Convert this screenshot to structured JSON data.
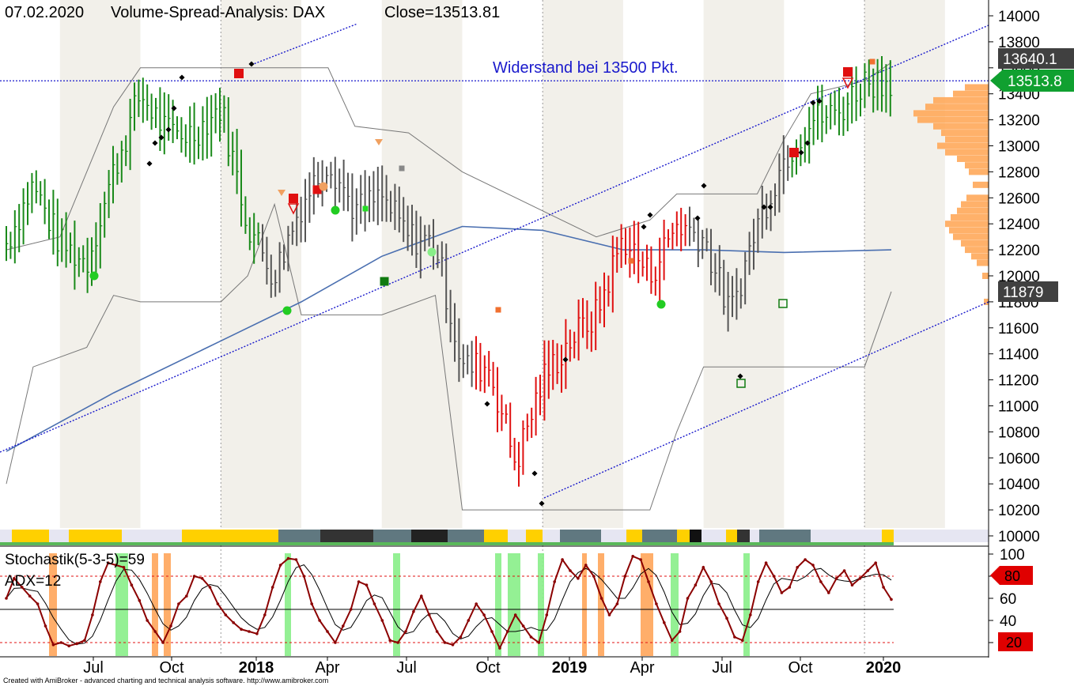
{
  "header": {
    "date": "07.02.2020",
    "title": "Volume-Spread-Analysis: DAX",
    "close_label": "Close=13513.81"
  },
  "annotation": {
    "resistance_text": "Widerstand bei 13500 Pkt."
  },
  "footer": {
    "credit": "Created with AmiBroker - advanced charting and technical analysis software. http://www.amibroker.com"
  },
  "price_badges": {
    "upper_band": "13640.1",
    "close": "13513.8",
    "lower_band": "11879"
  },
  "indicator": {
    "stoch_label": "Stochastik(5-3-5)=59",
    "adx_label": "ADX=12",
    "level_high": "80",
    "level_low": "20"
  },
  "colors": {
    "up_bar": "#1a8a1a",
    "down_bar": "#e01010",
    "neutral_bar": "#555555",
    "trend_line": "#1a1acc",
    "moving_average": "#4a6fb0",
    "volume_profile": "#ffa85a",
    "stoch_line": "#8b0000",
    "close_badge": "#10a030",
    "band_badge": "#404040",
    "level_badge": "#e00000"
  },
  "chart_data": [
    {
      "type": "bar",
      "subtype": "ohlc",
      "title": "Volume-Spread-Analysis: DAX",
      "date_labels": [
        "Jul",
        "Oct",
        "2018",
        "Apr",
        "Jul",
        "Oct",
        "2019",
        "Apr",
        "Jul",
        "Oct",
        "2020"
      ],
      "bold_labels": [
        "2018",
        "2019",
        "2020"
      ],
      "y_ticks": [
        10000,
        10200,
        10400,
        10600,
        10800,
        11000,
        11200,
        11400,
        11600,
        11800,
        12000,
        12200,
        12400,
        12600,
        12800,
        13000,
        13200,
        13400,
        13600,
        13800,
        14000
      ],
      "ylim": [
        9900,
        14100
      ],
      "close": 13513.81,
      "resistance": 13500,
      "band_upper_last": 13640.1,
      "band_lower_last": 11879,
      "series": [
        {
          "name": "weekly_close_approx",
          "points": [
            [
              "2017-05",
              12250
            ],
            [
              "2017-06",
              12700
            ],
            [
              "2017-07",
              12250
            ],
            [
              "2017-08",
              12100
            ],
            [
              "2017-09",
              12800
            ],
            [
              "2017-10",
              13400
            ],
            [
              "2017-11",
              13100
            ],
            [
              "2017-12",
              13100
            ],
            [
              "2018-01",
              13300
            ],
            [
              "2018-02",
              12400
            ],
            [
              "2018-03",
              12000
            ],
            [
              "2018-04",
              12550
            ],
            [
              "2018-05",
              12900
            ],
            [
              "2018-06",
              12500
            ],
            [
              "2018-07",
              12600
            ],
            [
              "2018-08",
              12300
            ],
            [
              "2018-09",
              12250
            ],
            [
              "2018-10",
              11300
            ],
            [
              "2018-11",
              11300
            ],
            [
              "2018-12",
              10560
            ],
            [
              "2019-01",
              11200
            ],
            [
              "2019-02",
              11500
            ],
            [
              "2019-03",
              11700
            ],
            [
              "2019-04",
              12300
            ],
            [
              "2019-05",
              12000
            ],
            [
              "2019-06",
              12400
            ],
            [
              "2019-07",
              12300
            ],
            [
              "2019-08",
              11700
            ],
            [
              "2019-09",
              12400
            ],
            [
              "2019-10",
              12900
            ],
            [
              "2019-11",
              13200
            ],
            [
              "2019-12",
              13250
            ],
            [
              "2020-01",
              13500
            ],
            [
              "2020-02",
              13514
            ]
          ]
        },
        {
          "name": "moving_average",
          "points": [
            [
              "2017-05",
              10650
            ],
            [
              "2017-09",
              11100
            ],
            [
              "2018-01",
              11500
            ],
            [
              "2018-04",
              11800
            ],
            [
              "2018-07",
              12150
            ],
            [
              "2018-10",
              12380
            ],
            [
              "2019-01",
              12350
            ],
            [
              "2019-04",
              12200
            ],
            [
              "2019-07",
              12200
            ],
            [
              "2019-10",
              12180
            ],
            [
              "2020-02",
              12200
            ]
          ]
        }
      ]
    },
    {
      "type": "line",
      "title": "Stochastik(5-3-5)=59",
      "y_ticks": [
        20,
        40,
        60,
        80,
        100
      ],
      "levels": [
        20,
        50,
        80
      ],
      "ylim": [
        0,
        105
      ],
      "last_value": 59,
      "adx": 12,
      "series": [
        {
          "name": "%K",
          "values": [
            60,
            78,
            70,
            62,
            55,
            35,
            18,
            20,
            17,
            19,
            22,
            45,
            75,
            92,
            90,
            88,
            72,
            58,
            40,
            30,
            20,
            35,
            55,
            62,
            80,
            78,
            70,
            55,
            45,
            38,
            32,
            30,
            28,
            45,
            70,
            90,
            96,
            95,
            80,
            55,
            40,
            30,
            20,
            35,
            50,
            75,
            72,
            55,
            40,
            22,
            20,
            30,
            48,
            62,
            45,
            30,
            20,
            18,
            25,
            40,
            55,
            45,
            30,
            15,
            30,
            45,
            35,
            25,
            20,
            45,
            75,
            95,
            85,
            78,
            90,
            80,
            60,
            45,
            55,
            80,
            98,
            95,
            75,
            55,
            38,
            22,
            30,
            60,
            72,
            88,
            75,
            55,
            42,
            25,
            22,
            45,
            75,
            92,
            80,
            65,
            70,
            88,
            95,
            90,
            75,
            65,
            78,
            85,
            72,
            78,
            85,
            92,
            70,
            59
          ]
        }
      ]
    }
  ]
}
